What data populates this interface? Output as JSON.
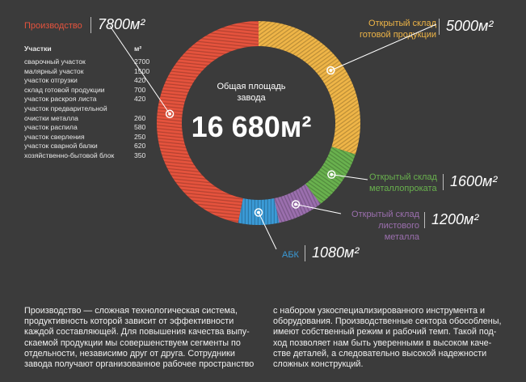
{
  "colors": {
    "background": "#3b3b3b",
    "production": "#e5533d",
    "finished_goods": "#efb547",
    "metal_stock": "#69b14e",
    "sheet_metal": "#9b6fae",
    "abk": "#3a9ad6"
  },
  "center": {
    "title_line1": "Общая площадь",
    "title_line2": "завода",
    "value": "16 680м²"
  },
  "segments": {
    "production": {
      "label": "Производство",
      "value": "7800м²"
    },
    "finished_goods": {
      "label_line1": "Открытый склад",
      "label_line2": "готовой продукции",
      "value": "5000м²"
    },
    "metal_stock": {
      "label_line1": "Открытый склад",
      "label_line2": "металлопроката",
      "value": "1600м²"
    },
    "sheet_metal": {
      "label_line1": "Открытый склад",
      "label_line2": "листового металла",
      "value": "1200м²"
    },
    "abk": {
      "label": "АБК",
      "value": "1080м²"
    }
  },
  "table": {
    "header_name": "Участки",
    "header_unit": "м²",
    "rows": [
      {
        "name": "сварочный участок",
        "value": "2700"
      },
      {
        "name": "малярный участок",
        "value": "1500"
      },
      {
        "name": "участок отгрузки",
        "value": "420"
      },
      {
        "name": "склад готовой продукции",
        "value": "700"
      },
      {
        "name": "участок раскроя листа",
        "value": "420"
      },
      {
        "name": "участок предварительной",
        "value": ""
      },
      {
        "name": "очистки металла",
        "value": "260"
      },
      {
        "name": "участок распила",
        "value": "580"
      },
      {
        "name": "участок сверления",
        "value": "250"
      },
      {
        "name": "участок сварной балки",
        "value": "620"
      },
      {
        "name": "хозяйственно-бытовой блок",
        "value": "350"
      }
    ]
  },
  "text": {
    "left_lines": [
      "Производство — сложная технологическая система,",
      "продуктивность которой зависит от эффективности",
      "каждой составляющей. Для повышения качества выпу-",
      "скаемой продукции мы совершенствуем сегменты по",
      "отдельности, независимо друг от друга. Сотрудники",
      "завода получают организованное рабочее пространство"
    ],
    "right_lines": [
      "с набором узкоспециализированного инструмента и",
      "оборудования. Производственные сектора обособлены,",
      "имеют собственный режим и рабочий темп. Такой под-",
      "ход позволяет нам быть уверенными в высоком каче-",
      "стве деталей, а следовательно высокой надежности",
      "сложных конструкций."
    ]
  },
  "chart_data": {
    "type": "pie",
    "title": "Общая площадь завода",
    "total": 16680,
    "unit": "м²",
    "slices": [
      {
        "name": "Открытый склад готовой продукции",
        "value": 5000
      },
      {
        "name": "Открытый склад металлопроката",
        "value": 1600
      },
      {
        "name": "Открытый склад листового металла",
        "value": 1200
      },
      {
        "name": "АБК",
        "value": 1080
      },
      {
        "name": "Производство",
        "value": 7800
      }
    ]
  }
}
